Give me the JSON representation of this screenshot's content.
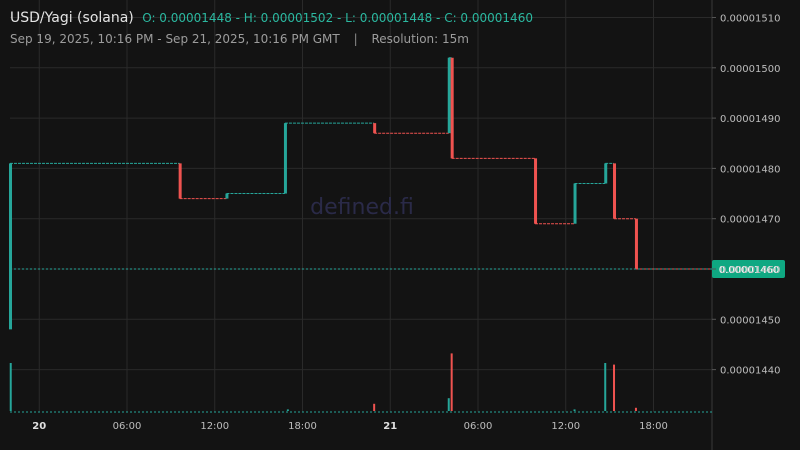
{
  "header": {
    "title": "USD/Yagi (solana)",
    "ohlc": "O: 0.00001448 - H: 0.00001502 - L: 0.00001448 - C: 0.00001460",
    "range": "Sep 19, 2025, 10:16 PM - Sep 21, 2025, 10:16 PM GMT",
    "separator": "|",
    "resolution": "Resolution: 15m"
  },
  "watermark": "defined.fi",
  "colors": {
    "background": "#131313",
    "up": "#26a69a",
    "down": "#ef5350",
    "grid": "#2a2a2a",
    "price_tag": "#0fa882"
  },
  "chart_data": {
    "type": "line",
    "subtype": "step-candles",
    "y_axis": {
      "position": "right",
      "ticks": [
        "0.00001510",
        "0.00001500",
        "0.00001490",
        "0.00001480",
        "0.00001470",
        "0.00001460",
        "0.00001450",
        "0.00001440"
      ],
      "tick_values": [
        1.51e-05,
        1.5e-05,
        1.49e-05,
        1.48e-05,
        1.47e-05,
        1.46e-05,
        1.45e-05,
        1.44e-05
      ],
      "ylim": [
        1.436e-05,
        1.512e-05
      ]
    },
    "x_axis": {
      "ticks": [
        {
          "label": "20",
          "hour": 2,
          "bold": true
        },
        {
          "label": "06:00",
          "hour": 8,
          "bold": false
        },
        {
          "label": "12:00",
          "hour": 14,
          "bold": false
        },
        {
          "label": "18:00",
          "hour": 20,
          "bold": false
        },
        {
          "label": "21",
          "hour": 26,
          "bold": true
        },
        {
          "label": "06:00",
          "hour": 32,
          "bold": false
        },
        {
          "label": "12:00",
          "hour": 38,
          "bold": false
        },
        {
          "label": "18:00",
          "hour": 44,
          "bold": false
        }
      ],
      "xlim": [
        0,
        48
      ]
    },
    "current_price": {
      "label": "0.00001460",
      "value": 1.46e-05
    },
    "segments": [
      {
        "start": 0.0,
        "end": 11.6,
        "open": 1.448e-05,
        "close": 1.481e-05
      },
      {
        "start": 11.6,
        "end": 14.8,
        "open": 1.481e-05,
        "close": 1.474e-05
      },
      {
        "start": 14.8,
        "end": 18.8,
        "open": 1.474e-05,
        "close": 1.475e-05
      },
      {
        "start": 18.8,
        "end": 24.9,
        "open": 1.475e-05,
        "close": 1.489e-05
      },
      {
        "start": 24.9,
        "end": 30.0,
        "open": 1.489e-05,
        "close": 1.487e-05
      },
      {
        "start": 30.0,
        "end": 30.2,
        "open": 1.487e-05,
        "close": 1.502e-05
      },
      {
        "start": 30.2,
        "end": 35.9,
        "open": 1.502e-05,
        "close": 1.482e-05
      },
      {
        "start": 35.9,
        "end": 38.6,
        "open": 1.482e-05,
        "close": 1.469e-05
      },
      {
        "start": 38.6,
        "end": 40.7,
        "open": 1.469e-05,
        "close": 1.477e-05
      },
      {
        "start": 40.7,
        "end": 41.3,
        "open": 1.477e-05,
        "close": 1.481e-05
      },
      {
        "start": 41.3,
        "end": 42.8,
        "open": 1.481e-05,
        "close": 1.47e-05
      },
      {
        "start": 42.8,
        "end": 48.0,
        "open": 1.47e-05,
        "close": 1.46e-05
      }
    ],
    "volume": [
      {
        "hour": 0.05,
        "volume": 60,
        "up": true
      },
      {
        "hour": 19.0,
        "volume": 2,
        "up": true
      },
      {
        "hour": 24.9,
        "volume": 9,
        "up": false
      },
      {
        "hour": 30.0,
        "volume": 16,
        "up": true
      },
      {
        "hour": 30.2,
        "volume": 72,
        "up": false
      },
      {
        "hour": 38.6,
        "volume": 2,
        "up": true
      },
      {
        "hour": 40.7,
        "volume": 60,
        "up": true
      },
      {
        "hour": 41.3,
        "volume": 58,
        "up": false
      },
      {
        "hour": 42.8,
        "volume": 4,
        "up": false
      }
    ],
    "volume_max": 100
  }
}
